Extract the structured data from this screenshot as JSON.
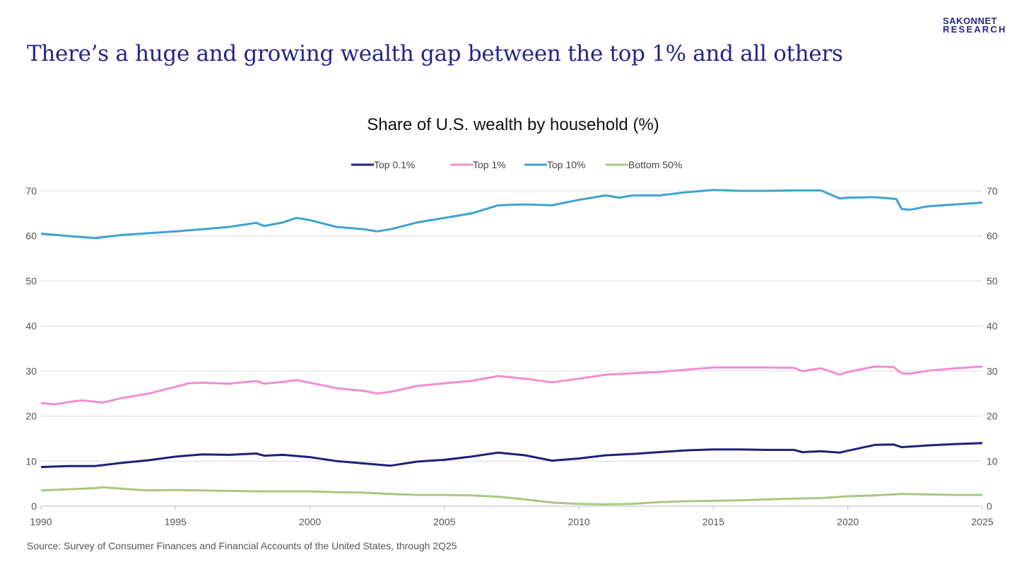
{
  "logo": {
    "line1": "SAKONNET",
    "line2": "RESEARCH"
  },
  "headline": "There’s a huge and growing wealth gap between the top 1% and all others",
  "source": "Source: Survey of Consumer Finances and Financial Accounts of the United States, through 2Q25",
  "chart_data": {
    "type": "line",
    "title": "Share of U.S. wealth by household (%)",
    "xlabel": "",
    "ylabel": "",
    "xlim": [
      1990,
      2025
    ],
    "ylim": [
      0,
      70
    ],
    "xticks": [
      1990,
      1995,
      2000,
      2005,
      2010,
      2015,
      2020,
      2025
    ],
    "yticks": [
      0,
      10,
      20,
      30,
      40,
      50,
      60,
      70
    ],
    "grid": true,
    "legend": "top",
    "series": [
      {
        "name": "Top 0.1%",
        "color": "#1f1f7a",
        "x": [
          1990,
          1991,
          1992,
          1993,
          1994,
          1995,
          1996,
          1997,
          1998,
          1998.3,
          1999,
          2000,
          2001,
          2002,
          2003,
          2004,
          2005,
          2006,
          2007,
          2008,
          2009,
          2010,
          2011,
          2012,
          2013,
          2014,
          2015,
          2016,
          2017,
          2018,
          2018.3,
          2019,
          2019.7,
          2020,
          2021,
          2021.7,
          2022,
          2023,
          2024,
          2025
        ],
        "y": [
          8.7,
          8.9,
          8.9,
          9.6,
          10.2,
          11,
          11.5,
          11.4,
          11.7,
          11.2,
          11.4,
          10.9,
          10,
          9.5,
          9,
          9.9,
          10.3,
          11,
          11.9,
          11.3,
          10.1,
          10.6,
          11.3,
          11.6,
          12,
          12.4,
          12.6,
          12.6,
          12.5,
          12.5,
          12,
          12.2,
          11.9,
          12.3,
          13.6,
          13.7,
          13.1,
          13.5,
          13.8,
          14
        ]
      },
      {
        "name": "Top 1%",
        "color": "#f08fd0",
        "x": [
          1990,
          1990.5,
          1991,
          1991.5,
          1992,
          1992.3,
          1993,
          1994,
          1995,
          1995.5,
          1996,
          1997,
          1998,
          1998.3,
          1999,
          1999.5,
          2000,
          2001,
          2002,
          2002.5,
          2003,
          2004,
          2005,
          2006,
          2007,
          2008,
          2009,
          2010,
          2011,
          2012,
          2013,
          2014,
          2015,
          2016,
          2017,
          2018,
          2018.3,
          2019,
          2019.7,
          2020,
          2021,
          2021.7,
          2022,
          2022.3,
          2023,
          2024,
          2025
        ],
        "y": [
          22.9,
          22.6,
          23.1,
          23.5,
          23.2,
          23,
          24,
          25,
          26.5,
          27.3,
          27.4,
          27.2,
          27.8,
          27.2,
          27.6,
          28,
          27.4,
          26.2,
          25.6,
          25,
          25.4,
          26.7,
          27.3,
          27.8,
          28.9,
          28.3,
          27.5,
          28.3,
          29.2,
          29.5,
          29.8,
          30.3,
          30.8,
          30.8,
          30.8,
          30.7,
          30,
          30.6,
          29.2,
          29.8,
          31,
          30.9,
          29.5,
          29.4,
          30.1,
          30.6,
          31
        ]
      },
      {
        "name": "Top 10%",
        "color": "#3ea3cf",
        "x": [
          1990,
          1991,
          1992,
          1993,
          1994,
          1995,
          1996,
          1997,
          1998,
          1998.3,
          1999,
          1999.5,
          2000,
          2001,
          2002,
          2002.5,
          2003,
          2004,
          2005,
          2006,
          2007,
          2008,
          2009,
          2010,
          2011,
          2011.5,
          2012,
          2013,
          2014,
          2015,
          2016,
          2017,
          2018,
          2019,
          2019.7,
          2020,
          2021,
          2021.8,
          2022,
          2022.3,
          2023,
          2024,
          2025
        ],
        "y": [
          60.5,
          60,
          59.5,
          60.2,
          60.6,
          61,
          61.5,
          62,
          62.9,
          62.2,
          63,
          64,
          63.5,
          62,
          61.5,
          61,
          61.5,
          63,
          64,
          65,
          66.8,
          67,
          66.8,
          68,
          69,
          68.5,
          69,
          69,
          69.7,
          70.2,
          70,
          70,
          70.1,
          70.1,
          68.3,
          68.5,
          68.6,
          68.2,
          66,
          65.8,
          66.6,
          67,
          67.4
        ]
      },
      {
        "name": "Bottom 50%",
        "color": "#a9c97f",
        "x": [
          1990,
          1992,
          1992.3,
          1993,
          1994,
          1995,
          1996,
          1998,
          1999,
          2000,
          2001,
          2002,
          2003,
          2004,
          2005,
          2006,
          2007,
          2008,
          2009,
          2010,
          2011,
          2012,
          2013,
          2014,
          2015,
          2016,
          2017,
          2018,
          2019,
          2020,
          2021,
          2022,
          2023,
          2024,
          2025
        ],
        "y": [
          3.5,
          4,
          4.2,
          3.9,
          3.5,
          3.6,
          3.5,
          3.3,
          3.3,
          3.3,
          3.1,
          3,
          2.7,
          2.5,
          2.5,
          2.4,
          2.1,
          1.5,
          0.8,
          0.5,
          0.4,
          0.5,
          0.9,
          1.1,
          1.2,
          1.3,
          1.5,
          1.7,
          1.8,
          2.2,
          2.4,
          2.7,
          2.6,
          2.5,
          2.5
        ]
      }
    ]
  }
}
